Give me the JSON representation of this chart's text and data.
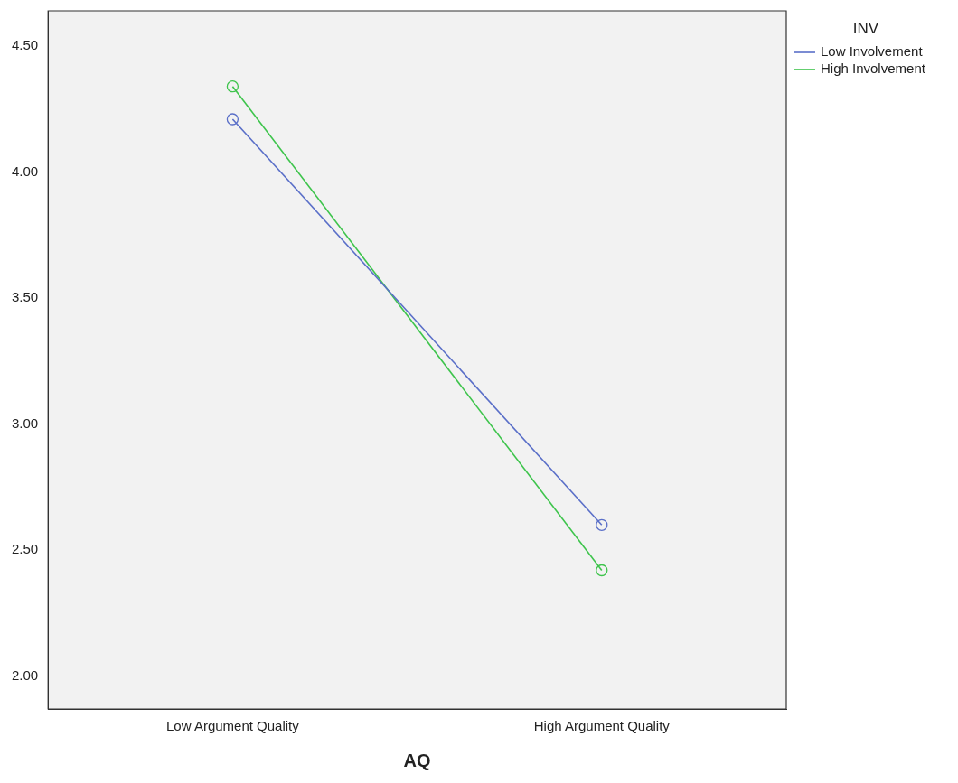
{
  "chart_data": {
    "type": "line",
    "xlabel": "AQ",
    "legend_title": "INV",
    "legend": "top right",
    "marker": "circle",
    "grid": false,
    "categories": [
      "Low Argument Quality",
      "High Argument Quality"
    ],
    "series": [
      {
        "name": "Low Involvement",
        "color": "#5a6fc8",
        "values": [
          4.21,
          2.6
        ]
      },
      {
        "name": "High Involvement",
        "color": "#3ec44c",
        "values": [
          4.34,
          2.42
        ]
      }
    ],
    "ylim": [
      1.87,
      4.64
    ],
    "yticks": [
      {
        "value": 2,
        "label": "2.00"
      },
      {
        "value": 2.5,
        "label": "2.50"
      },
      {
        "value": 3,
        "label": "3.00"
      },
      {
        "value": 3.5,
        "label": "3.50"
      },
      {
        "value": 4,
        "label": "4.00"
      },
      {
        "value": 4.5,
        "label": "4.50"
      }
    ]
  }
}
